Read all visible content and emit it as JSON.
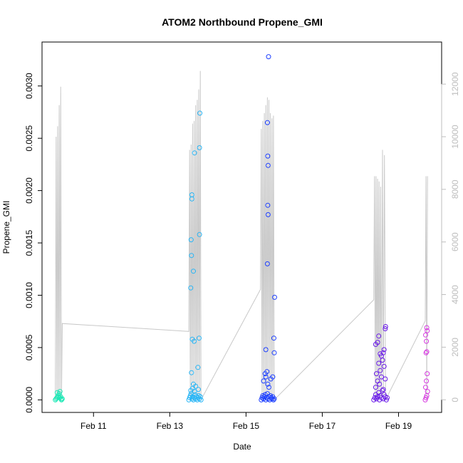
{
  "chart_data": {
    "type": "scatter",
    "title": "ATOM2 Northbound Propene_GMI",
    "xlabel": "Date",
    "ylabel": "Propene_GMI",
    "x_ticks": [
      "Feb 11",
      "Feb 13",
      "Feb 15",
      "Feb 17",
      "Feb 19"
    ],
    "x_tick_values": [
      11,
      13,
      15,
      17,
      19
    ],
    "xlim": [
      9.65,
      20.13
    ],
    "y_ticks": [
      "0.0000",
      "0.0005",
      "0.0010",
      "0.0015",
      "0.0020",
      "0.0025",
      "0.0030"
    ],
    "y_tick_values": [
      0,
      0.0005,
      0.001,
      0.0015,
      0.002,
      0.0025,
      0.003
    ],
    "ylim": [
      -0.00012,
      0.00342
    ],
    "y2_ticks": [
      "0",
      "2000",
      "4000",
      "6000",
      "8000",
      "10000",
      "12000"
    ],
    "y2_tick_values": [
      0,
      2000,
      4000,
      6000,
      8000,
      10000,
      12000
    ],
    "y2lim": [
      -480,
      13600
    ],
    "grid": false,
    "series": [
      {
        "color": "#1de9b6",
        "points": [
          [
            10.0,
            0.0
          ],
          [
            10.02,
            1e-05
          ],
          [
            10.04,
            2e-05
          ],
          [
            10.06,
            3e-05
          ],
          [
            10.08,
            4e-05
          ],
          [
            10.1,
            6e-05
          ],
          [
            10.12,
            8e-05
          ],
          [
            10.14,
            3e-05
          ],
          [
            10.16,
            0.0
          ],
          [
            10.18,
            1e-05
          ],
          [
            10.05,
            7e-05
          ],
          [
            10.11,
            2e-05
          ],
          [
            10.15,
            1e-05
          ]
        ]
      },
      {
        "color": "#29b6f6",
        "points": [
          [
            13.5,
            0.0
          ],
          [
            13.52,
            2e-05
          ],
          [
            13.54,
            4e-05
          ],
          [
            13.56,
            6e-05
          ],
          [
            13.58,
            1e-05
          ],
          [
            13.6,
            3e-05
          ],
          [
            13.62,
            0.0
          ],
          [
            13.64,
            2e-05
          ],
          [
            13.66,
            5e-05
          ],
          [
            13.68,
            1e-05
          ],
          [
            13.7,
            3e-05
          ],
          [
            13.72,
            0.0
          ],
          [
            13.74,
            2e-05
          ],
          [
            13.76,
            4e-05
          ],
          [
            13.78,
            1e-05
          ],
          [
            13.8,
            3e-05
          ],
          [
            13.82,
            0.0
          ],
          [
            13.55,
            9e-05
          ],
          [
            13.6,
            0.00011
          ],
          [
            13.65,
            8e-05
          ],
          [
            13.75,
            0.0001
          ],
          [
            13.57,
            0.00026
          ],
          [
            13.62,
            0.00015
          ],
          [
            13.68,
            0.00013
          ],
          [
            13.55,
            0.00107
          ],
          [
            13.57,
            0.00138
          ],
          [
            13.56,
            0.00153
          ],
          [
            13.58,
            0.00192
          ],
          [
            13.58,
            0.00196
          ],
          [
            13.62,
            0.00123
          ],
          [
            13.65,
            0.00236
          ],
          [
            13.59,
            0.00058
          ],
          [
            13.64,
            0.00056
          ],
          [
            13.74,
            0.00031
          ],
          [
            13.77,
            0.00059
          ],
          [
            13.78,
            0.00158
          ],
          [
            13.78,
            0.00241
          ],
          [
            13.79,
            0.00274
          ]
        ]
      },
      {
        "color": "#1e40ff",
        "points": [
          [
            15.4,
            0.0
          ],
          [
            15.42,
            2e-05
          ],
          [
            15.44,
            4e-05
          ],
          [
            15.46,
            1e-05
          ],
          [
            15.48,
            3e-05
          ],
          [
            15.5,
            5e-05
          ],
          [
            15.52,
            0.0
          ],
          [
            15.54,
            2e-05
          ],
          [
            15.56,
            6e-05
          ],
          [
            15.58,
            1e-05
          ],
          [
            15.6,
            3e-05
          ],
          [
            15.62,
            0.0
          ],
          [
            15.64,
            4e-05
          ],
          [
            15.66,
            2e-05
          ],
          [
            15.68,
            1e-05
          ],
          [
            15.7,
            3e-05
          ],
          [
            15.72,
            0.0
          ],
          [
            15.74,
            1e-05
          ],
          [
            15.46,
            0.00018
          ],
          [
            15.5,
            0.00025
          ],
          [
            15.52,
            0.00022
          ],
          [
            15.55,
            0.00027
          ],
          [
            15.57,
            0.00015
          ],
          [
            15.6,
            0.00012
          ],
          [
            15.65,
            0.0002
          ],
          [
            15.7,
            0.00022
          ],
          [
            15.52,
            0.00048
          ],
          [
            15.56,
            0.0013
          ],
          [
            15.58,
            0.00177
          ],
          [
            15.57,
            0.00186
          ],
          [
            15.58,
            0.00224
          ],
          [
            15.57,
            0.00233
          ],
          [
            15.56,
            0.00265
          ],
          [
            15.59,
            0.00328
          ],
          [
            15.73,
            0.00059
          ],
          [
            15.74,
            0.00045
          ],
          [
            15.75,
            0.00098
          ]
        ]
      },
      {
        "color": "#6a1be8",
        "points": [
          [
            18.35,
            0.0
          ],
          [
            18.38,
            2e-05
          ],
          [
            18.4,
            5e-05
          ],
          [
            18.42,
            1e-05
          ],
          [
            18.45,
            3e-05
          ],
          [
            18.48,
            7e-05
          ],
          [
            18.5,
            0.0
          ],
          [
            18.52,
            4e-05
          ],
          [
            18.55,
            2e-05
          ],
          [
            18.58,
            9e-05
          ],
          [
            18.6,
            1e-05
          ],
          [
            18.62,
            5e-05
          ],
          [
            18.65,
            3e-05
          ],
          [
            18.68,
            0.0
          ],
          [
            18.7,
            2e-05
          ],
          [
            18.4,
            0.00012
          ],
          [
            18.45,
            0.00018
          ],
          [
            18.5,
            0.00015
          ],
          [
            18.55,
            0.00022
          ],
          [
            18.6,
            0.0001
          ],
          [
            18.65,
            0.0002
          ],
          [
            18.42,
            0.00025
          ],
          [
            18.52,
            0.00028
          ],
          [
            18.62,
            0.00032
          ],
          [
            18.48,
            0.00035
          ],
          [
            18.58,
            0.00038
          ],
          [
            18.4,
            0.00053
          ],
          [
            18.45,
            0.00055
          ],
          [
            18.48,
            0.00061
          ],
          [
            18.52,
            0.00044
          ],
          [
            18.55,
            0.00042
          ],
          [
            18.6,
            0.00045
          ],
          [
            18.62,
            0.00048
          ],
          [
            18.65,
            0.00068
          ],
          [
            18.66,
            0.0007
          ]
        ]
      },
      {
        "color": "#d63be0",
        "points": [
          [
            19.7,
            0.0
          ],
          [
            19.72,
            2e-05
          ],
          [
            19.74,
            4e-05
          ],
          [
            19.76,
            8e-05
          ],
          [
            19.71,
            0.00012
          ],
          [
            19.73,
            0.00018
          ],
          [
            19.75,
            0.00025
          ],
          [
            19.72,
            0.00045
          ],
          [
            19.74,
            0.00046
          ],
          [
            19.73,
            0.00056
          ],
          [
            19.71,
            0.00062
          ],
          [
            19.75,
            0.00066
          ],
          [
            19.74,
            0.00069
          ]
        ]
      }
    ],
    "gray_line": {
      "color": "#c8c8c8",
      "axis": "right",
      "points": [
        [
          10.0,
          0
        ],
        [
          10.02,
          10000
        ],
        [
          10.04,
          0
        ],
        [
          10.06,
          10400
        ],
        [
          10.08,
          0
        ],
        [
          10.1,
          11200
        ],
        [
          10.12,
          0
        ],
        [
          10.14,
          11900
        ],
        [
          10.16,
          0
        ],
        [
          10.18,
          2900
        ],
        [
          13.5,
          2600
        ],
        [
          13.52,
          9500
        ],
        [
          13.54,
          0
        ],
        [
          13.56,
          9700
        ],
        [
          13.58,
          0
        ],
        [
          13.6,
          10500
        ],
        [
          13.62,
          0
        ],
        [
          13.64,
          10600
        ],
        [
          13.66,
          0
        ],
        [
          13.68,
          11200
        ],
        [
          13.7,
          0
        ],
        [
          13.72,
          11400
        ],
        [
          13.74,
          0
        ],
        [
          13.76,
          11800
        ],
        [
          13.78,
          0
        ],
        [
          13.8,
          12500
        ],
        [
          13.82,
          0
        ],
        [
          15.38,
          4200
        ],
        [
          15.4,
          10300
        ],
        [
          15.42,
          0
        ],
        [
          15.44,
          10600
        ],
        [
          15.46,
          0
        ],
        [
          15.48,
          10900
        ],
        [
          15.5,
          0
        ],
        [
          15.52,
          11200
        ],
        [
          15.54,
          0
        ],
        [
          15.56,
          11500
        ],
        [
          15.58,
          0
        ],
        [
          15.6,
          11400
        ],
        [
          15.62,
          0
        ],
        [
          15.64,
          10900
        ],
        [
          15.66,
          0
        ],
        [
          15.68,
          10700
        ],
        [
          15.7,
          0
        ],
        [
          15.72,
          10800
        ],
        [
          15.74,
          0
        ],
        [
          18.35,
          3800
        ],
        [
          18.37,
          8500
        ],
        [
          18.39,
          0
        ],
        [
          18.41,
          8500
        ],
        [
          18.43,
          0
        ],
        [
          18.45,
          8400
        ],
        [
          18.47,
          0
        ],
        [
          18.49,
          8300
        ],
        [
          18.51,
          0
        ],
        [
          18.53,
          8100
        ],
        [
          18.55,
          0
        ],
        [
          18.58,
          9500
        ],
        [
          18.6,
          0
        ],
        [
          18.63,
          9300
        ],
        [
          18.66,
          0
        ],
        [
          19.7,
          3000
        ],
        [
          19.72,
          8500
        ],
        [
          19.74,
          0
        ],
        [
          19.76,
          8500
        ]
      ]
    }
  }
}
